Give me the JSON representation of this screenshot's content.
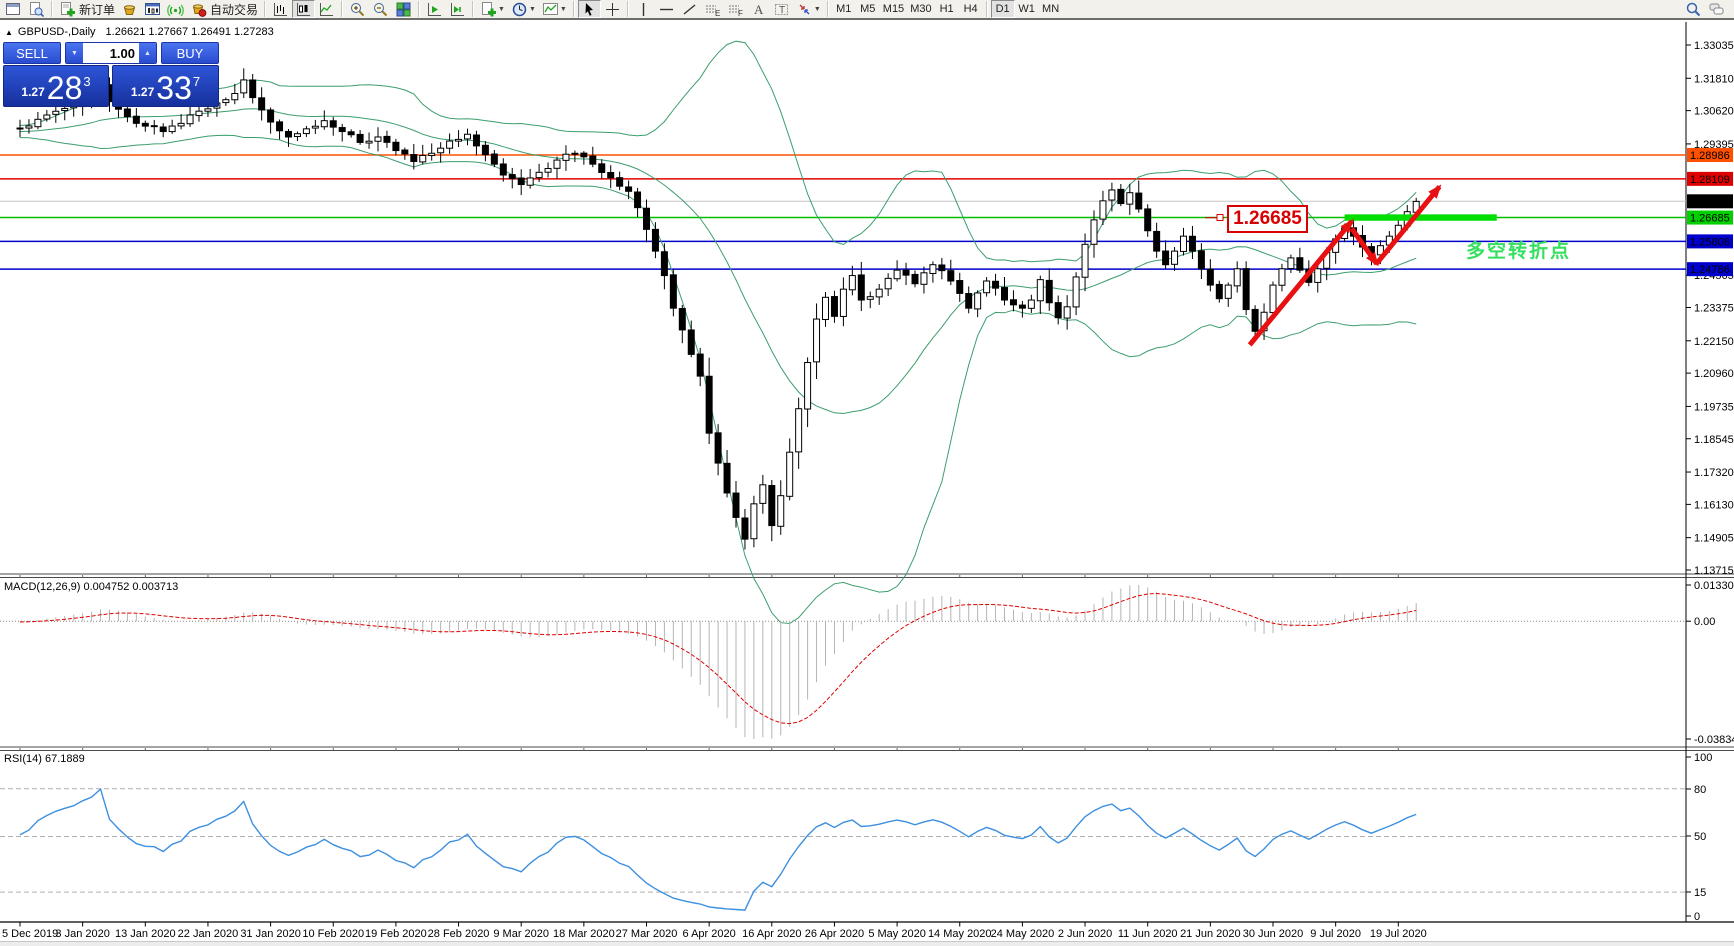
{
  "toolbar": {
    "new_order_label": "新订单",
    "auto_trading_label": "自动交易",
    "timeframes": [
      "M1",
      "M5",
      "M15",
      "M30",
      "H1",
      "H4",
      "D1",
      "W1",
      "MN"
    ],
    "active_timeframe": "D1"
  },
  "chart_header": {
    "collapse_icon": "▲",
    "symbol": "GBPUSD-,Daily",
    "ohlc": "1.26621 1.27667 1.26491 1.27283"
  },
  "trade_widget": {
    "sell_label": "SELL",
    "buy_label": "BUY",
    "volume": "1.00",
    "sell_price_main": "1.27",
    "sell_price_big": "28",
    "sell_price_sup": "3",
    "buy_price_main": "1.27",
    "buy_price_big": "33",
    "buy_price_sup": "7"
  },
  "indicator_labels": {
    "macd": "MACD(12,26,9) 0.004752 0.003713",
    "rsi": "RSI(14) 67.1889"
  },
  "annotations": {
    "price_flag": "1.26685",
    "side_note": "多空转折点"
  },
  "chart_data": {
    "type": "candlestick",
    "symbol": "GBPUSD",
    "timeframe": "Daily",
    "bars": 157,
    "close_anchors": [
      [
        0,
        1.2995
      ],
      [
        2,
        1.303
      ],
      [
        5,
        1.307
      ],
      [
        8,
        1.3115
      ],
      [
        9,
        1.316
      ],
      [
        10,
        1.3095
      ],
      [
        12,
        1.304
      ],
      [
        14,
        1.3005
      ],
      [
        16,
        1.2985
      ],
      [
        18,
        1.3015
      ],
      [
        20,
        1.306
      ],
      [
        22,
        1.309
      ],
      [
        24,
        1.3125
      ],
      [
        25,
        1.3175
      ],
      [
        26,
        1.311
      ],
      [
        28,
        1.302
      ],
      [
        30,
        1.2965
      ],
      [
        32,
        1.2995
      ],
      [
        34,
        1.3025
      ],
      [
        36,
        1.2985
      ],
      [
        38,
        1.2945
      ],
      [
        40,
        1.2965
      ],
      [
        42,
        1.2915
      ],
      [
        44,
        1.2875
      ],
      [
        46,
        1.2905
      ],
      [
        48,
        1.295
      ],
      [
        50,
        1.2975
      ],
      [
        52,
        1.29
      ],
      [
        54,
        1.2825
      ],
      [
        56,
        1.279
      ],
      [
        58,
        1.2835
      ],
      [
        60,
        1.288
      ],
      [
        62,
        1.2905
      ],
      [
        64,
        1.2865
      ],
      [
        66,
        1.2815
      ],
      [
        68,
        1.2765
      ],
      [
        69,
        1.2705
      ],
      [
        70,
        1.2625
      ],
      [
        71,
        1.2545
      ],
      [
        72,
        1.2455
      ],
      [
        73,
        1.2335
      ],
      [
        74,
        1.2255
      ],
      [
        75,
        1.2165
      ],
      [
        76,
        1.2085
      ],
      [
        77,
        1.1875
      ],
      [
        78,
        1.1765
      ],
      [
        79,
        1.1655
      ],
      [
        80,
        1.1565
      ],
      [
        81,
        1.1485
      ],
      [
        82,
        1.1615
      ],
      [
        83,
        1.1685
      ],
      [
        84,
        1.1535
      ],
      [
        85,
        1.1645
      ],
      [
        86,
        1.1805
      ],
      [
        87,
        1.1965
      ],
      [
        88,
        1.2135
      ],
      [
        89,
        1.2295
      ],
      [
        90,
        1.2375
      ],
      [
        91,
        1.2305
      ],
      [
        92,
        1.2405
      ],
      [
        93,
        1.2455
      ],
      [
        94,
        1.2365
      ],
      [
        96,
        1.2405
      ],
      [
        98,
        1.2475
      ],
      [
        100,
        1.2425
      ],
      [
        102,
        1.2495
      ],
      [
        104,
        1.2435
      ],
      [
        106,
        1.2335
      ],
      [
        108,
        1.2435
      ],
      [
        110,
        1.2365
      ],
      [
        112,
        1.2335
      ],
      [
        113,
        1.2365
      ],
      [
        114,
        1.244
      ],
      [
        115,
        1.2355
      ],
      [
        116,
        1.23
      ],
      [
        117,
        1.234
      ],
      [
        118,
        1.245
      ],
      [
        119,
        1.257
      ],
      [
        120,
        1.266
      ],
      [
        121,
        1.273
      ],
      [
        122,
        1.277
      ],
      [
        123,
        1.272
      ],
      [
        124,
        1.276
      ],
      [
        125,
        1.27
      ],
      [
        126,
        1.262
      ],
      [
        127,
        1.2545
      ],
      [
        128,
        1.2495
      ],
      [
        129,
        1.2545
      ],
      [
        130,
        1.26
      ],
      [
        131,
        1.2545
      ],
      [
        132,
        1.248
      ],
      [
        133,
        1.242
      ],
      [
        134,
        1.237
      ],
      [
        135,
        1.242
      ],
      [
        136,
        1.248
      ],
      [
        137,
        1.233
      ],
      [
        138,
        1.225
      ],
      [
        139,
        1.232
      ],
      [
        140,
        1.242
      ],
      [
        141,
        1.248
      ],
      [
        142,
        1.252
      ],
      [
        143,
        1.2475
      ],
      [
        144,
        1.243
      ],
      [
        145,
        1.248
      ],
      [
        146,
        1.254
      ],
      [
        147,
        1.259
      ],
      [
        148,
        1.263
      ],
      [
        149,
        1.26
      ],
      [
        150,
        1.256
      ],
      [
        151,
        1.253
      ],
      [
        152,
        1.2565
      ],
      [
        153,
        1.26
      ],
      [
        154,
        1.264
      ],
      [
        155,
        1.269
      ],
      [
        156,
        1.2728
      ]
    ],
    "price_axis": {
      "min": 1.13715,
      "max": 1.33035,
      "ticks": [
        "1.33035",
        "1.31810",
        "1.30620",
        "1.29395",
        "1.24565",
        "1.23375",
        "1.22150",
        "1.20960",
        "1.19735",
        "1.18545",
        "1.17320",
        "1.16130",
        "1.14905",
        "1.13715"
      ]
    },
    "price_tags": [
      {
        "value": "1.28986",
        "price": 1.28986,
        "bg": "#ff5000",
        "fg": "#ffffff",
        "line_color": "#ff5000",
        "line_width": 1.5
      },
      {
        "value": "1.28109",
        "price": 1.28109,
        "bg": "#e00000",
        "fg": "#ffffff",
        "line_color": "#e00000",
        "line_width": 1.5
      },
      {
        "value": "1.27283",
        "price": 1.27283,
        "bg": "#000000",
        "fg": "#ffffff",
        "line_color": "#c4c4c4",
        "line_width": 1
      },
      {
        "value": "1.26685",
        "price": 1.26685,
        "bg": "#00d000",
        "fg": "#002800",
        "line_color": "#00c000",
        "line_width": 1.5
      },
      {
        "value": "1.25808",
        "price": 1.25808,
        "bg": "#0000cc",
        "fg": "#ffffff",
        "line_color": "#0000cc",
        "line_width": 1.5
      },
      {
        "value": "1.24786",
        "price": 1.24786,
        "bg": "#0000cc",
        "fg": "#ffffff",
        "line_color": "#0000cc",
        "line_width": 1.5
      }
    ],
    "bollinger": {
      "period": 20,
      "deviation": 2,
      "color": "#3c9e6e"
    },
    "macd": {
      "fast": 12,
      "slow": 26,
      "signal": 9,
      "hist_color": "#b4b4b4",
      "signal_color": "#e00000",
      "axis_ticks": [
        "0.013301",
        "0.00",
        "-0.038343"
      ]
    },
    "rsi": {
      "period": 14,
      "color": "#3d8fe0",
      "axis_ticks": [
        [
          "100",
          757
        ],
        [
          "80",
          789
        ],
        [
          "50",
          836
        ],
        [
          "15",
          892
        ],
        [
          "0",
          916
        ]
      ],
      "levels": [
        80,
        50,
        15
      ]
    },
    "dates": [
      "5 Dec 2019",
      "3 Jan 2020",
      "13 Jan 2020",
      "22 Jan 2020",
      "31 Jan 2020",
      "10 Feb 2020",
      "19 Feb 2020",
      "28 Feb 2020",
      "9 Mar 2020",
      "18 Mar 2020",
      "27 Mar 2020",
      "6 Apr 2020",
      "16 Apr 2020",
      "26 Apr 2020",
      "5 May 2020",
      "14 May 2020",
      "24 May 2020",
      "2 Jun 2020",
      "11 Jun 2020",
      "21 Jun 2020",
      "30 Jun 2020",
      "9 Jul 2020",
      "19 Jul 2020"
    ],
    "trend_arrows": {
      "color": "#e81010",
      "segments": [
        {
          "from_bar": 137.4,
          "from_price": 1.22,
          "to_bar": 148.8,
          "to_price": 1.2655
        },
        {
          "from_bar": 148.8,
          "from_price": 1.2628,
          "to_bar": 151.6,
          "to_price": 1.2498
        },
        {
          "from_bar": 151.6,
          "from_price": 1.25,
          "to_bar": 158.6,
          "to_price": 1.2782
        }
      ]
    },
    "resistance_bar": {
      "from_bar": 148,
      "to_bar": 165,
      "price": 1.26685,
      "color": "#00dd00"
    }
  }
}
